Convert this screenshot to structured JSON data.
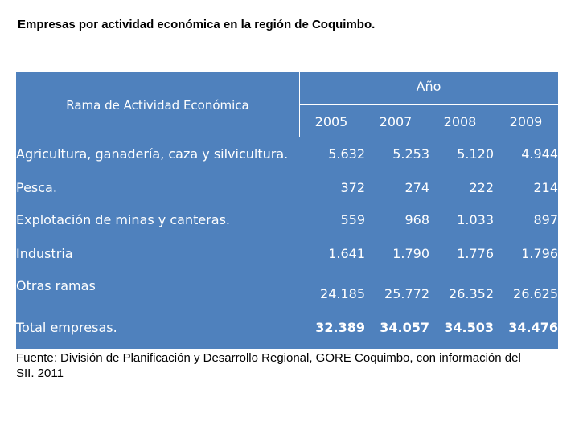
{
  "title": "Empresas por actividad económica en la región de Coquimbo.",
  "table": {
    "header_group": "Año",
    "header_rama": "Rama de Actividad Económica",
    "years": [
      "2005",
      "2007",
      "2008",
      "2009"
    ],
    "rows": [
      {
        "label": "Agricultura, ganadería, caza y silvicultura.",
        "values": [
          "5.632",
          "5.253",
          "5.120",
          "4.944"
        ]
      },
      {
        "label": "Pesca.",
        "values": [
          "372",
          "274",
          "222",
          "214"
        ]
      },
      {
        "label": "Explotación de minas y canteras.",
        "values": [
          "559",
          "968",
          "1.033",
          "897"
        ]
      },
      {
        "label": "Industria",
        "values": [
          "1.641",
          "1.790",
          "1.776",
          "1.796"
        ]
      },
      {
        "label": "Otras ramas",
        "values": [
          "24.185",
          "25.772",
          "26.352",
          "26.625"
        ]
      },
      {
        "label": "Total empresas.",
        "values": [
          "32.389",
          "34.057",
          "34.503",
          "34.476"
        ]
      }
    ]
  },
  "source": "Fuente: División de Planificación y Desarrollo Regional, GORE Coquimbo, con información del SII. 2011"
}
